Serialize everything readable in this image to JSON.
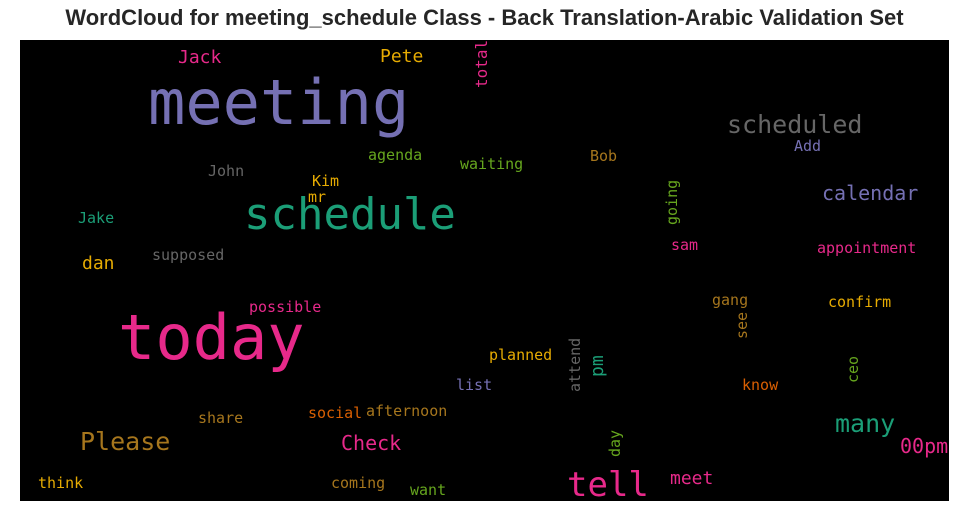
{
  "chart_data": {
    "type": "wordcloud",
    "title": "WordCloud for meeting_schedule Class - Back Translation-Arabic Validation Set",
    "background": "#000000",
    "words": [
      {
        "text": "meeting",
        "color": "#7570b3"
      },
      {
        "text": "today",
        "color": "#e7298a"
      },
      {
        "text": "schedule",
        "color": "#1b9e77"
      },
      {
        "text": "tell",
        "color": "#e7298a"
      },
      {
        "text": "scheduled",
        "color": "#666666"
      },
      {
        "text": "Please",
        "color": "#a6761d"
      },
      {
        "text": "many",
        "color": "#1b9e77"
      },
      {
        "text": "Check",
        "color": "#e7298a"
      },
      {
        "text": "calendar",
        "color": "#7570b3"
      },
      {
        "text": "00pm",
        "color": "#e7298a"
      },
      {
        "text": "Jack",
        "color": "#e7298a"
      },
      {
        "text": "Pete",
        "color": "#e6ab02"
      },
      {
        "text": "total",
        "color": "#e7298a"
      },
      {
        "text": "agenda",
        "color": "#66a61e"
      },
      {
        "text": "waiting",
        "color": "#66a61e"
      },
      {
        "text": "Bob",
        "color": "#a6761d"
      },
      {
        "text": "Add",
        "color": "#7570b3"
      },
      {
        "text": "John",
        "color": "#666666"
      },
      {
        "text": "Kim",
        "color": "#e6ab02"
      },
      {
        "text": "mr",
        "color": "#e6ab02"
      },
      {
        "text": "going",
        "color": "#66a61e"
      },
      {
        "text": "Jake",
        "color": "#1b9e77"
      },
      {
        "text": "dan",
        "color": "#e6ab02"
      },
      {
        "text": "supposed",
        "color": "#666666"
      },
      {
        "text": "sam",
        "color": "#e7298a"
      },
      {
        "text": "appointment",
        "color": "#e7298a"
      },
      {
        "text": "possible",
        "color": "#e7298a"
      },
      {
        "text": "gang",
        "color": "#a6761d"
      },
      {
        "text": "confirm",
        "color": "#e6ab02"
      },
      {
        "text": "see",
        "color": "#a6761d"
      },
      {
        "text": "attend",
        "color": "#666666"
      },
      {
        "text": "planned",
        "color": "#e6ab02"
      },
      {
        "text": "pm",
        "color": "#1b9e77"
      },
      {
        "text": "list",
        "color": "#7570b3"
      },
      {
        "text": "know",
        "color": "#d95f02"
      },
      {
        "text": "ceo",
        "color": "#66a61e"
      },
      {
        "text": "share",
        "color": "#a6761d"
      },
      {
        "text": "social",
        "color": "#d95f02"
      },
      {
        "text": "afternoon",
        "color": "#a6761d"
      },
      {
        "text": "day",
        "color": "#66a61e"
      },
      {
        "text": "meet",
        "color": "#e7298a"
      },
      {
        "text": "think",
        "color": "#e6ab02"
      },
      {
        "text": "coming",
        "color": "#a6761d"
      },
      {
        "text": "want",
        "color": "#66a61e"
      }
    ]
  }
}
